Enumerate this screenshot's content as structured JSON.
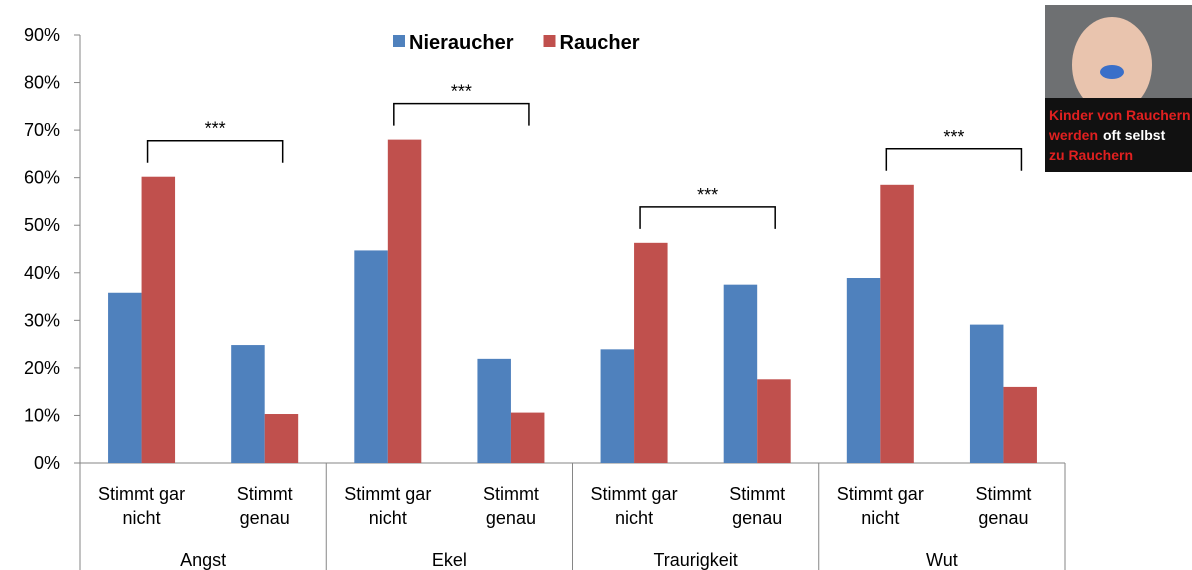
{
  "chart_data": {
    "type": "bar",
    "groups": [
      "Angst",
      "Ekel",
      "Traurigkeit",
      "Wut"
    ],
    "categories": [
      [
        "Stimmt gar",
        "nicht"
      ],
      [
        "Stimmt",
        "genau"
      ],
      [
        "Stimmt gar",
        "nicht"
      ],
      [
        "Stimmt",
        "genau"
      ],
      [
        "Stimmt gar",
        "nicht"
      ],
      [
        "Stimmt",
        "genau"
      ],
      [
        "Stimmt gar",
        "nicht"
      ],
      [
        "Stimmt",
        "genau"
      ]
    ],
    "series": [
      {
        "name": "Nieraucher",
        "color": "#4f81bd",
        "values": [
          35.8,
          24.8,
          44.7,
          21.9,
          23.9,
          37.5,
          38.9,
          29.1
        ]
      },
      {
        "name": "Raucher",
        "color": "#c0504d",
        "values": [
          60.2,
          10.3,
          68.0,
          10.6,
          46.3,
          17.6,
          58.5,
          16.0
        ]
      }
    ],
    "ylim": [
      0,
      90
    ],
    "yticks": [
      {
        "value": 0,
        "label": "0%"
      },
      {
        "value": 10,
        "label": "10%"
      },
      {
        "value": 20,
        "label": "20%"
      },
      {
        "value": 30,
        "label": "30%"
      },
      {
        "value": 40,
        "label": "40%"
      },
      {
        "value": 50,
        "label": "50%"
      },
      {
        "value": 60,
        "label": "60%"
      },
      {
        "value": 70,
        "label": "70%"
      },
      {
        "value": 80,
        "label": "80%"
      },
      {
        "value": 90,
        "label": "90%"
      }
    ],
    "annotations": [
      "***",
      "***",
      "***",
      "***"
    ],
    "image_text": [
      "Kinder von Rauchern",
      "werden",
      "oft selbst",
      "zu Rauchern"
    ]
  }
}
